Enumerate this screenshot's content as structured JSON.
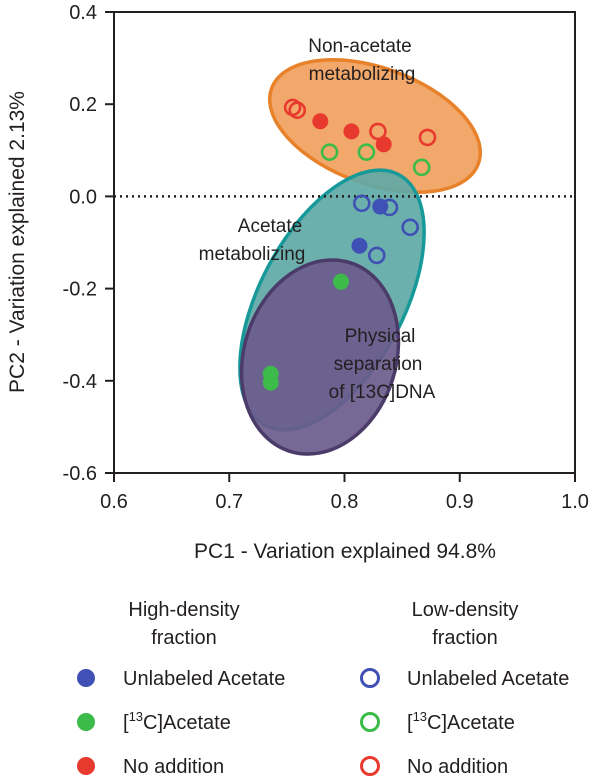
{
  "chart_data": {
    "type": "scatter",
    "xlabel": "PC1 - Variation explained 94.8%",
    "ylabel": "PC2 - Variation explained 2.13%",
    "xlim": [
      0.6,
      1.0
    ],
    "ylim": [
      -0.6,
      0.4
    ],
    "xticks": [
      "0.6",
      "0.7",
      "0.8",
      "0.9",
      "1.0"
    ],
    "yticks": [
      "0.4",
      "0.2",
      "0.0",
      "-0.2",
      "-0.4",
      "-0.6"
    ],
    "reference_line": {
      "y": 0.0,
      "style": "dotted"
    },
    "regions": [
      {
        "name": "non-acetate",
        "label_lines": [
          "Non-acetate",
          "metabolizing"
        ],
        "fill": "#f2a86a",
        "stroke": "#e8822a"
      },
      {
        "name": "acetate",
        "label_lines": [
          "Acetate",
          "metabolizing"
        ],
        "fill": "#5fa9a6",
        "stroke": "#17999a"
      },
      {
        "name": "physical",
        "label_lines": [
          "Physical",
          "separation",
          "of [13C]DNA"
        ],
        "fill": "#6b5b8c",
        "stroke": "#4a3b68"
      }
    ],
    "series": [
      {
        "name": "High-density Unlabeled Acetate",
        "fraction": "high",
        "color": "#3f51b5",
        "filled": true,
        "points": [
          [
            0.831,
            -0.022
          ],
          [
            0.813,
            -0.107
          ]
        ]
      },
      {
        "name": "High-density [13C]Acetate",
        "fraction": "high",
        "color": "#3dbb4a",
        "filled": true,
        "points": [
          [
            0.797,
            -0.185
          ],
          [
            0.736,
            -0.385
          ],
          [
            0.736,
            -0.404
          ]
        ]
      },
      {
        "name": "High-density No addition",
        "fraction": "high",
        "color": "#e8392f",
        "filled": true,
        "points": [
          [
            0.779,
            0.163
          ],
          [
            0.806,
            0.141
          ],
          [
            0.834,
            0.113
          ]
        ]
      },
      {
        "name": "Low-density Unlabeled Acetate",
        "fraction": "low",
        "color": "#3f51b5",
        "filled": false,
        "points": [
          [
            0.815,
            -0.015
          ],
          [
            0.839,
            -0.024
          ],
          [
            0.857,
            -0.067
          ],
          [
            0.828,
            -0.128
          ]
        ]
      },
      {
        "name": "Low-density [13C]Acetate",
        "fraction": "low",
        "color": "#3dbb4a",
        "filled": false,
        "points": [
          [
            0.787,
            0.096
          ],
          [
            0.819,
            0.096
          ],
          [
            0.867,
            0.063
          ]
        ]
      },
      {
        "name": "Low-density No addition",
        "fraction": "low",
        "color": "#e8392f",
        "filled": false,
        "points": [
          [
            0.755,
            0.193
          ],
          [
            0.759,
            0.187
          ],
          [
            0.829,
            0.141
          ],
          [
            0.872,
            0.128
          ]
        ]
      }
    ]
  },
  "legend": {
    "high": {
      "heading": [
        "High-density",
        "fraction"
      ],
      "items": [
        {
          "label": "Unlabeled Acetate",
          "color": "#3f51b5"
        },
        {
          "label_pre": "[",
          "sup": "13",
          "label_post": "C]Acetate",
          "color": "#3dbb4a"
        },
        {
          "label": "No addition",
          "color": "#e8392f"
        }
      ]
    },
    "low": {
      "heading": [
        "Low-density",
        "fraction"
      ],
      "items": [
        {
          "label": "Unlabeled Acetate",
          "color": "#3f51b5"
        },
        {
          "label_pre": "[",
          "sup": "13",
          "label_post": "C]Acetate",
          "color": "#3dbb4a"
        },
        {
          "label": "No addition",
          "color": "#e8392f"
        }
      ]
    }
  }
}
